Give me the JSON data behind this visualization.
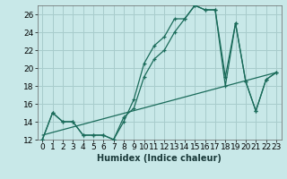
{
  "xlabel": "Humidex (Indice chaleur)",
  "background_color": "#c8e8e8",
  "grid_color": "#a8cccc",
  "line_color": "#1a6b5a",
  "xlim": [
    -0.5,
    23.5
  ],
  "ylim": [
    12,
    27
  ],
  "yticks": [
    12,
    14,
    16,
    18,
    20,
    22,
    24,
    26
  ],
  "xticks": [
    0,
    1,
    2,
    3,
    4,
    5,
    6,
    7,
    8,
    9,
    10,
    11,
    12,
    13,
    14,
    15,
    16,
    17,
    18,
    19,
    20,
    21,
    22,
    23
  ],
  "series1_x": [
    0,
    1,
    2,
    3,
    4,
    5,
    6,
    7,
    8,
    9,
    10,
    11,
    12,
    13,
    14,
    15,
    16,
    17,
    18,
    19,
    20,
    21,
    22,
    23
  ],
  "series1_y": [
    12,
    15,
    14,
    14,
    12.5,
    12.5,
    12.5,
    12,
    14,
    16.5,
    20.5,
    22.5,
    23.5,
    25.5,
    25.5,
    27,
    26.5,
    26.5,
    19.0,
    25.0,
    18.5,
    15.2,
    18.7,
    19.5
  ],
  "series2_x": [
    0,
    1,
    2,
    3,
    4,
    5,
    6,
    7,
    8,
    9,
    10,
    11,
    12,
    13,
    14,
    15,
    16,
    17,
    18,
    19,
    20,
    21,
    22,
    23
  ],
  "series2_y": [
    12,
    15,
    14,
    14,
    12.5,
    12.5,
    12.5,
    12,
    14.5,
    15.5,
    19.0,
    21.0,
    22.0,
    24.0,
    25.5,
    27.0,
    26.5,
    26.5,
    18.0,
    25.0,
    18.5,
    15.2,
    18.7,
    19.5
  ],
  "series3_x": [
    0,
    23
  ],
  "series3_y": [
    12.5,
    19.5
  ],
  "fontsize_xlabel": 7,
  "tick_fontsize": 6.5
}
